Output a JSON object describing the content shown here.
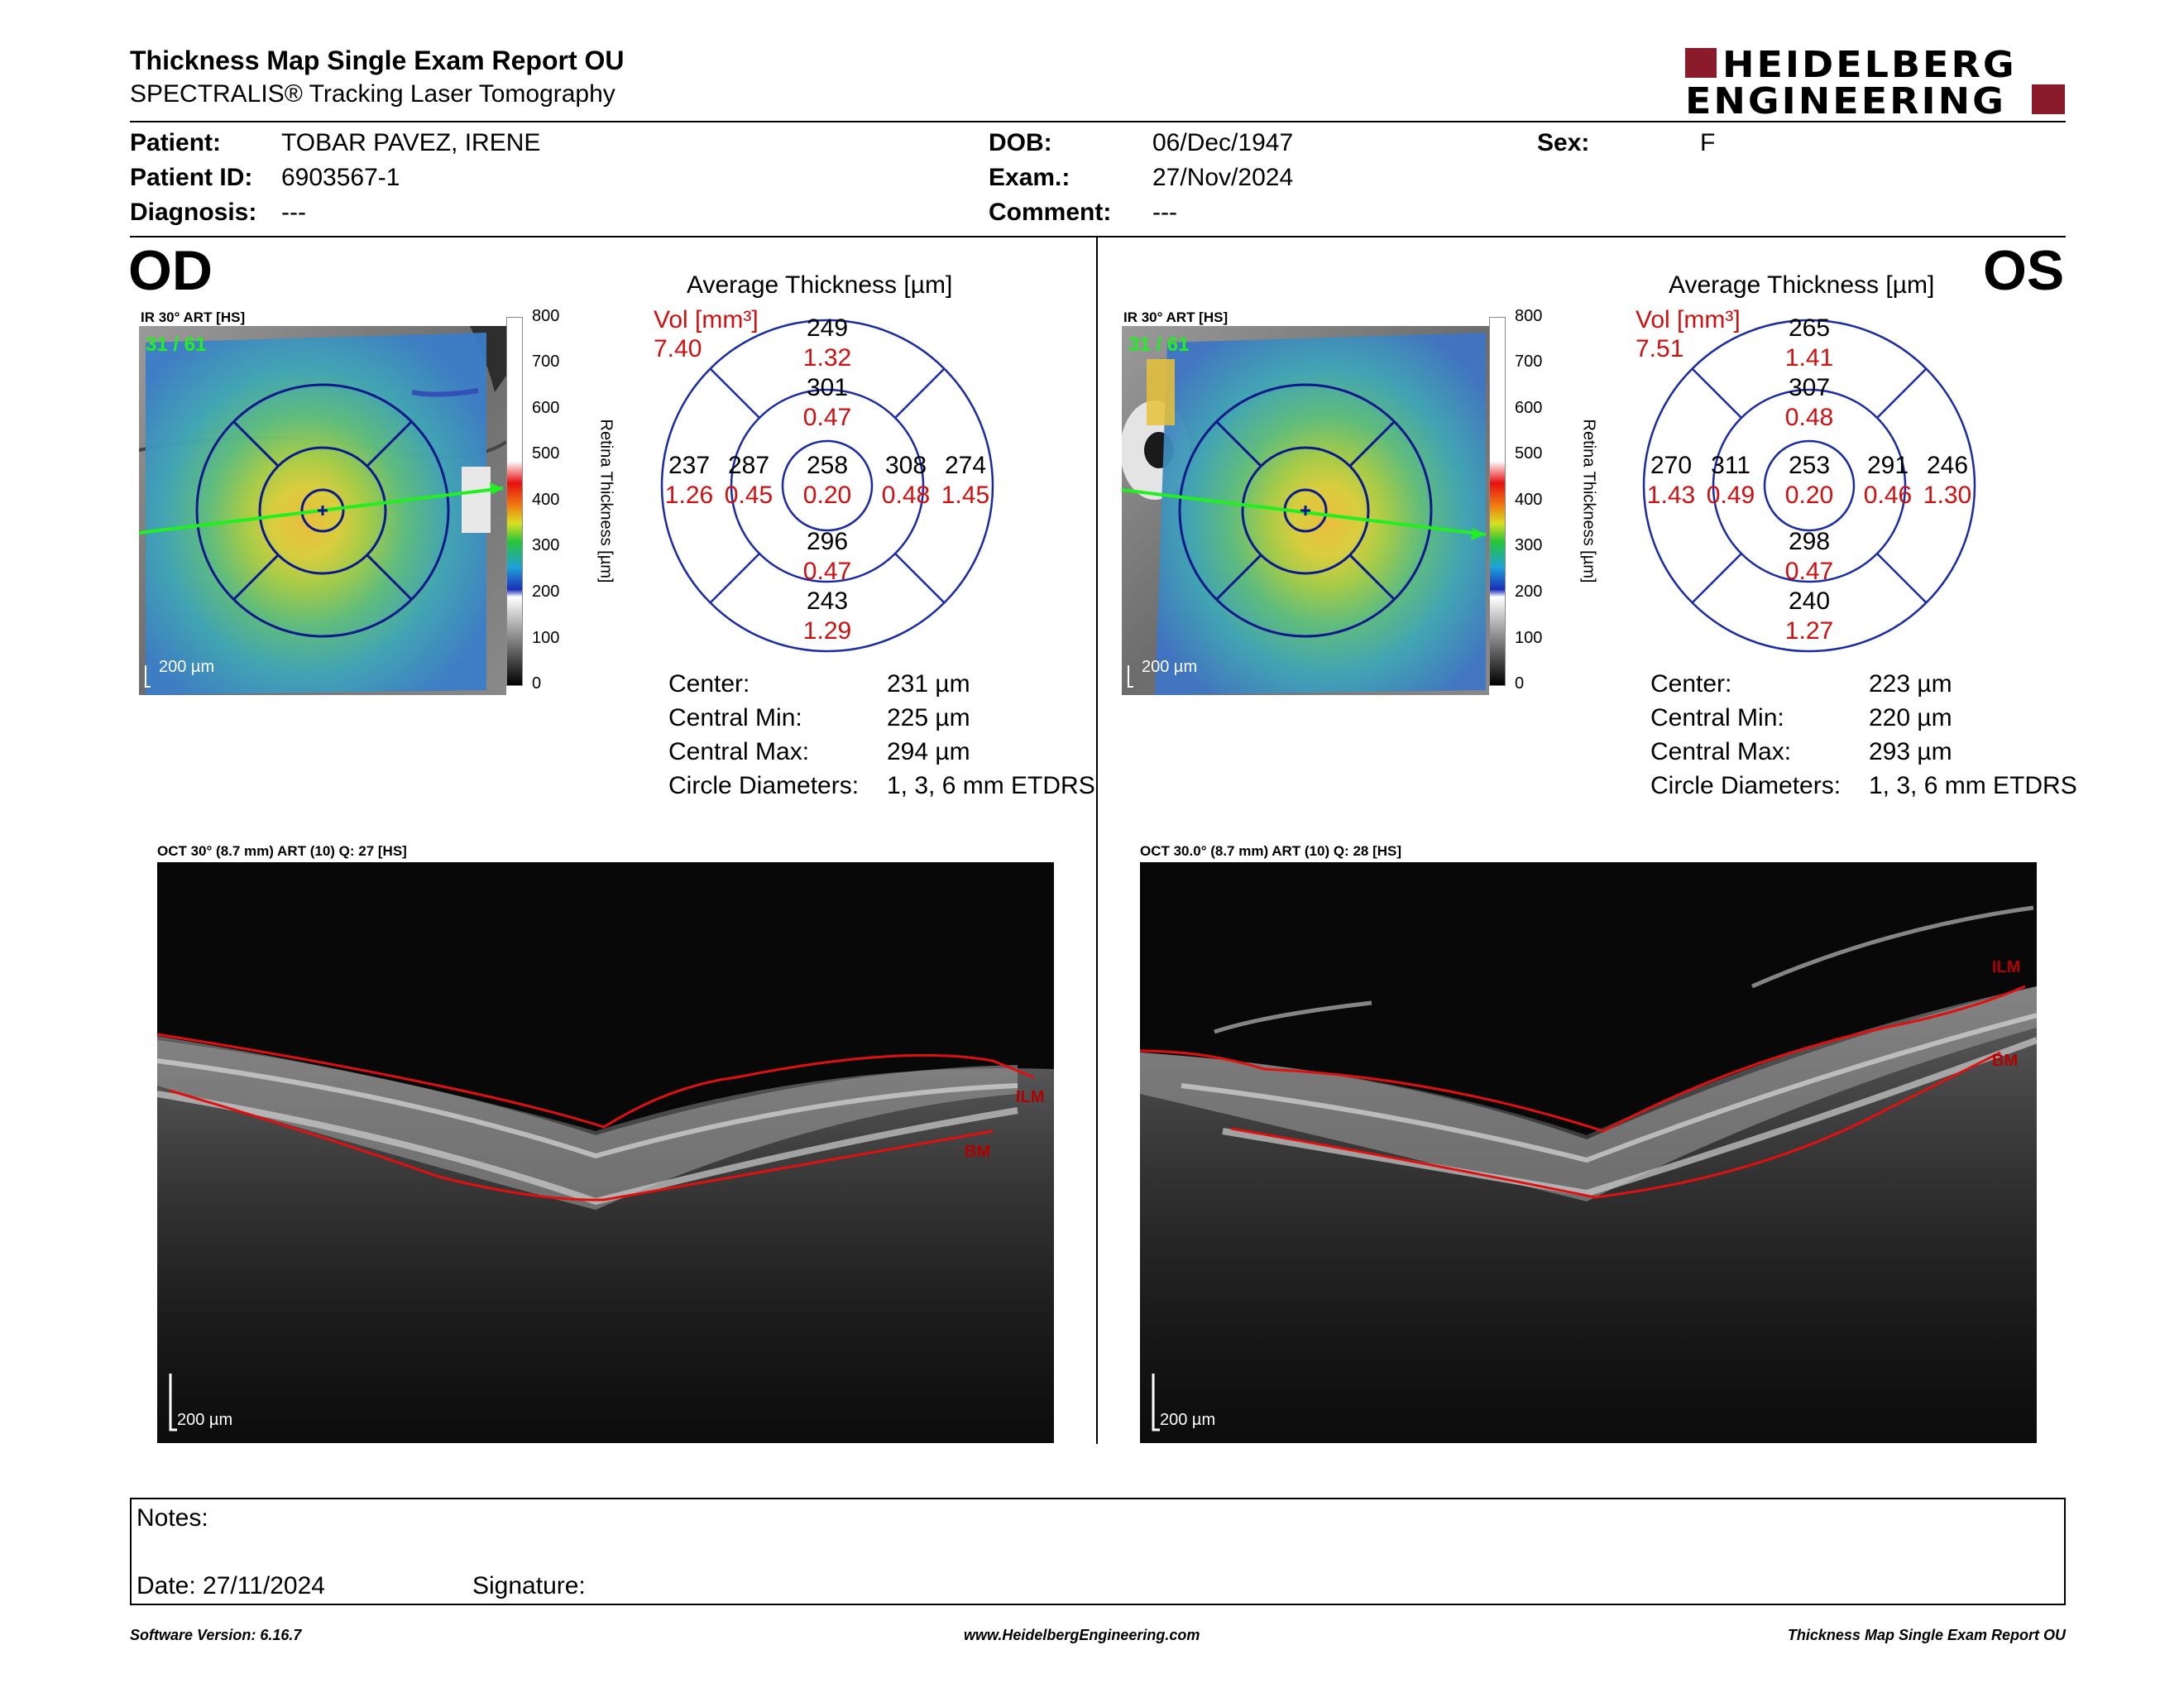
{
  "header": {
    "title": "Thickness Map Single Exam Report OU",
    "subtitle": "SPECTRALIS® Tracking Laser Tomography",
    "logo_line1": "HEIDELBERG",
    "logo_line2": "ENGINEERING",
    "brand_color": "#8b1a2b"
  },
  "patient": {
    "patient_label": "Patient:",
    "patient_value": "TOBAR PAVEZ, IRENE",
    "id_label": "Patient ID:",
    "id_value": "6903567-1",
    "diagnosis_label": "Diagnosis:",
    "diagnosis_value": "---",
    "dob_label": "DOB:",
    "dob_value": "06/Dec/1947",
    "exam_label": "Exam.:",
    "exam_value": "27/Nov/2024",
    "comment_label": "Comment:",
    "comment_value": "---",
    "sex_label": "Sex:",
    "sex_value": "F"
  },
  "scale": {
    "ticks": [
      "800",
      "700",
      "600",
      "500",
      "400",
      "300",
      "200",
      "100",
      "0"
    ],
    "label": "Retina Thickness [µm]"
  },
  "od": {
    "eye_label": "OD",
    "ir_label": "IR 30° ART [HS]",
    "scan_index": "31 / 61",
    "map_scale": "200 µm",
    "avg_title": "Average Thickness [µm]",
    "vol_label": "Vol [mm³]",
    "vol_total": "7.40",
    "sectors": {
      "center": {
        "t": "258",
        "v": "0.20"
      },
      "inner_sup": {
        "t": "301",
        "v": "0.47"
      },
      "inner_inf": {
        "t": "296",
        "v": "0.47"
      },
      "inner_left": {
        "t": "287",
        "v": "0.45"
      },
      "inner_right": {
        "t": "308",
        "v": "0.48"
      },
      "outer_sup": {
        "t": "249",
        "v": "1.32"
      },
      "outer_inf": {
        "t": "243",
        "v": "1.29"
      },
      "outer_left": {
        "t": "237",
        "v": "1.26"
      },
      "outer_right": {
        "t": "274",
        "v": "1.45"
      }
    },
    "stats": {
      "center_label": "Center:",
      "center_value": "231 µm",
      "min_label": "Central Min:",
      "min_value": "225 µm",
      "max_label": "Central Max:",
      "max_value": "294 µm",
      "diam_label": "Circle Diameters:",
      "diam_value": "1, 3, 6 mm ETDRS"
    },
    "oct_label": "OCT 30° (8.7 mm) ART (10) Q: 27 [HS]",
    "oct_scale": "200 µm",
    "ilm": "ILM",
    "bm": "BM"
  },
  "os": {
    "eye_label": "OS",
    "ir_label": "IR 30° ART [HS]",
    "scan_index": "31 / 61",
    "map_scale": "200 µm",
    "avg_title": "Average Thickness [µm]",
    "vol_label": "Vol [mm³]",
    "vol_total": "7.51",
    "sectors": {
      "center": {
        "t": "253",
        "v": "0.20"
      },
      "inner_sup": {
        "t": "307",
        "v": "0.48"
      },
      "inner_inf": {
        "t": "298",
        "v": "0.47"
      },
      "inner_left": {
        "t": "311",
        "v": "0.49"
      },
      "inner_right": {
        "t": "291",
        "v": "0.46"
      },
      "outer_sup": {
        "t": "265",
        "v": "1.41"
      },
      "outer_inf": {
        "t": "240",
        "v": "1.27"
      },
      "outer_left": {
        "t": "270",
        "v": "1.43"
      },
      "outer_right": {
        "t": "246",
        "v": "1.30"
      }
    },
    "stats": {
      "center_label": "Center:",
      "center_value": "223 µm",
      "min_label": "Central Min:",
      "min_value": "220 µm",
      "max_label": "Central Max:",
      "max_value": "293 µm",
      "diam_label": "Circle Diameters:",
      "diam_value": "1, 3, 6 mm ETDRS"
    },
    "oct_label": "OCT 30.0° (8.7 mm) ART (10) Q: 28 [HS]",
    "oct_scale": "200 µm",
    "ilm": "ILM",
    "bm": "BM"
  },
  "notes": {
    "notes_label": "Notes:",
    "date_label": "Date: 27/11/2024",
    "signature_label": "Signature:"
  },
  "footer": {
    "software": "Software Version: 6.16.7",
    "url": "www.HeidelbergEngineering.com",
    "report": "Thickness Map Single Exam Report OU"
  }
}
